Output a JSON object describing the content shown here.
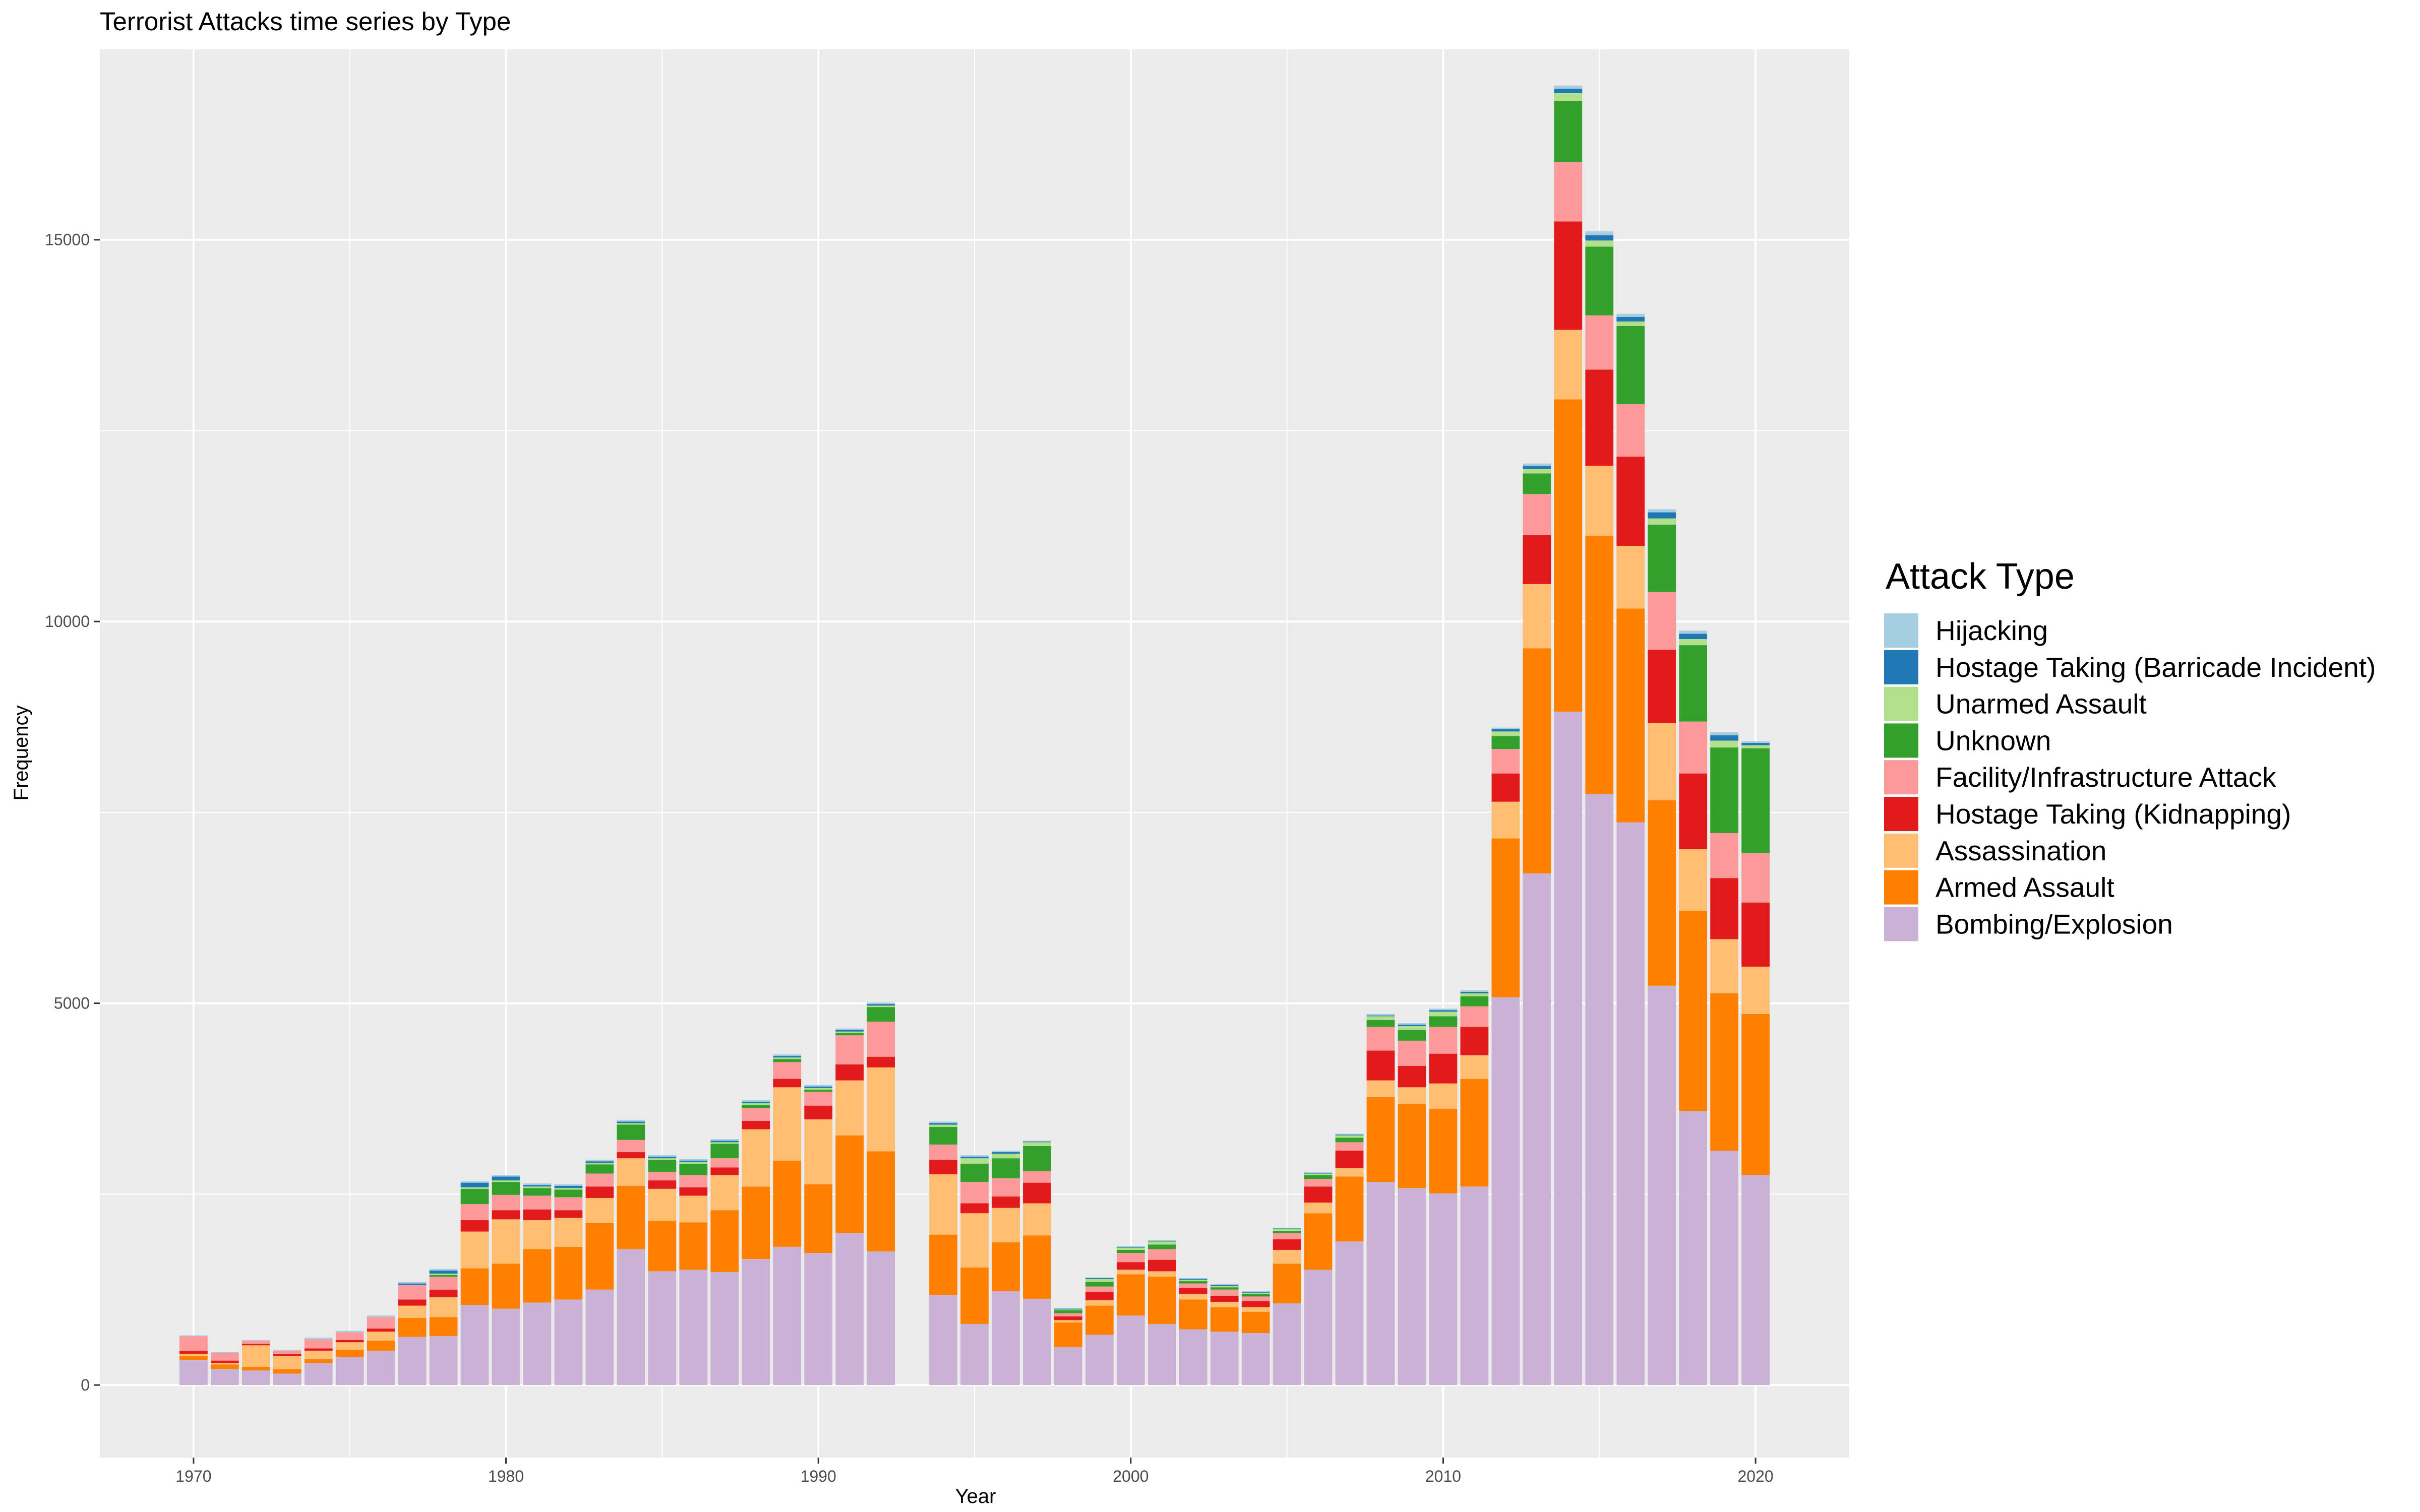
{
  "chart_data": {
    "type": "bar",
    "stacked": true,
    "title": "Terrorist Attacks time series by Type",
    "xlabel": "Year",
    "ylabel": "Frequency",
    "xlim": [
      1967,
      2023
    ],
    "ylim": [
      -950,
      17500
    ],
    "x_ticks": [
      1970,
      1980,
      1990,
      2000,
      2010,
      2020
    ],
    "y_ticks": [
      0,
      5000,
      10000,
      15000
    ],
    "grid": true,
    "legend": {
      "title": "Attack Type",
      "position": "right"
    },
    "years": [
      1970,
      1971,
      1972,
      1973,
      1974,
      1975,
      1976,
      1977,
      1978,
      1979,
      1980,
      1981,
      1982,
      1983,
      1984,
      1985,
      1986,
      1987,
      1988,
      1989,
      1990,
      1991,
      1992,
      1994,
      1995,
      1996,
      1997,
      1998,
      1999,
      2000,
      2001,
      2002,
      2003,
      2004,
      2005,
      2006,
      2007,
      2008,
      2009,
      2010,
      2011,
      2012,
      2013,
      2014,
      2015,
      2016,
      2017,
      2018,
      2019,
      2020
    ],
    "series": [
      {
        "name": "Bombing/Explosion",
        "color": "#cab2d6",
        "values": [
          330,
          210,
          190,
          150,
          290,
          370,
          450,
          630,
          640,
          1050,
          1000,
          1080,
          1120,
          1250,
          1780,
          1490,
          1510,
          1480,
          1650,
          1810,
          1730,
          1990,
          1750,
          1180,
          800,
          1230,
          1130,
          500,
          660,
          910,
          800,
          730,
          700,
          680,
          1070,
          1510,
          1880,
          2660,
          2580,
          2510,
          2600,
          5080,
          6700,
          8820,
          7740,
          7370,
          5230,
          3590,
          3070,
          2750
        ]
      },
      {
        "name": "Armed Assault",
        "color": "#ff7f00",
        "values": [
          50,
          60,
          50,
          60,
          50,
          90,
          130,
          250,
          250,
          480,
          590,
          700,
          690,
          870,
          830,
          660,
          620,
          810,
          950,
          1130,
          900,
          1280,
          1310,
          790,
          740,
          640,
          830,
          320,
          380,
          540,
          620,
          390,
          320,
          280,
          520,
          740,
          850,
          1110,
          1100,
          1110,
          1410,
          2080,
          2950,
          4090,
          3380,
          2800,
          2430,
          2620,
          2060,
          2110
        ]
      },
      {
        "name": "Assassination",
        "color": "#fdbf6f",
        "values": [
          30,
          20,
          280,
          170,
          110,
          100,
          120,
          160,
          260,
          480,
          580,
          380,
          380,
          330,
          360,
          420,
          350,
          460,
          750,
          960,
          850,
          720,
          1100,
          790,
          710,
          450,
          420,
          30,
          70,
          60,
          70,
          70,
          70,
          60,
          180,
          140,
          110,
          220,
          220,
          330,
          310,
          480,
          840,
          910,
          920,
          820,
          1010,
          810,
          710,
          620
        ]
      },
      {
        "name": "Hostage Taking (Kidnapping)",
        "color": "#e31a1c",
        "values": [
          40,
          30,
          20,
          30,
          30,
          30,
          40,
          80,
          100,
          150,
          120,
          140,
          100,
          150,
          80,
          110,
          110,
          100,
          110,
          110,
          180,
          210,
          140,
          190,
          130,
          150,
          270,
          50,
          110,
          100,
          150,
          80,
          80,
          80,
          140,
          210,
          230,
          390,
          280,
          390,
          370,
          370,
          640,
          1420,
          1260,
          1170,
          960,
          990,
          800,
          840
        ]
      },
      {
        "name": "Facility/Infrastructure Attack",
        "color": "#fb9a99",
        "values": [
          190,
          100,
          40,
          40,
          120,
          100,
          150,
          190,
          170,
          210,
          200,
          180,
          170,
          170,
          160,
          110,
          160,
          120,
          170,
          220,
          180,
          380,
          460,
          200,
          280,
          240,
          150,
          40,
          70,
          120,
          140,
          60,
          80,
          60,
          80,
          100,
          110,
          310,
          330,
          350,
          270,
          320,
          540,
          780,
          710,
          690,
          760,
          680,
          590,
          650
        ]
      },
      {
        "name": "Unknown",
        "color": "#33a02c",
        "values": [
          0,
          0,
          0,
          0,
          0,
          0,
          0,
          0,
          20,
          200,
          170,
          100,
          100,
          120,
          200,
          160,
          150,
          190,
          40,
          40,
          30,
          30,
          190,
          230,
          240,
          260,
          330,
          40,
          60,
          40,
          60,
          30,
          30,
          30,
          30,
          50,
          60,
          90,
          140,
          140,
          130,
          170,
          270,
          800,
          900,
          1020,
          880,
          1000,
          1120,
          1370
        ]
      },
      {
        "name": "Unarmed Assault",
        "color": "#b2df8a",
        "values": [
          0,
          0,
          0,
          0,
          0,
          0,
          0,
          0,
          20,
          20,
          20,
          20,
          20,
          20,
          20,
          20,
          20,
          20,
          20,
          20,
          20,
          20,
          20,
          30,
          70,
          60,
          50,
          10,
          40,
          30,
          40,
          20,
          20,
          20,
          20,
          20,
          30,
          50,
          50,
          60,
          40,
          60,
          60,
          100,
          80,
          60,
          80,
          80,
          90,
          40
        ]
      },
      {
        "name": "Hostage Taking (Barricade Incident)",
        "color": "#1f78b4",
        "values": [
          0,
          0,
          0,
          0,
          0,
          0,
          0,
          20,
          40,
          60,
          50,
          20,
          30,
          20,
          20,
          20,
          20,
          20,
          20,
          20,
          20,
          20,
          20,
          20,
          20,
          20,
          10,
          10,
          10,
          10,
          10,
          10,
          10,
          10,
          10,
          10,
          10,
          10,
          20,
          20,
          20,
          30,
          40,
          60,
          70,
          60,
          80,
          70,
          70,
          30
        ]
      },
      {
        "name": "Hijacking",
        "color": "#a6cee3",
        "values": [
          10,
          10,
          10,
          10,
          20,
          20,
          20,
          20,
          20,
          20,
          20,
          20,
          20,
          20,
          20,
          20,
          20,
          20,
          20,
          20,
          20,
          20,
          20,
          20,
          20,
          20,
          10,
          10,
          10,
          10,
          10,
          10,
          10,
          10,
          10,
          10,
          10,
          20,
          20,
          20,
          20,
          20,
          30,
          40,
          50,
          40,
          40,
          40,
          40,
          20
        ]
      }
    ]
  }
}
